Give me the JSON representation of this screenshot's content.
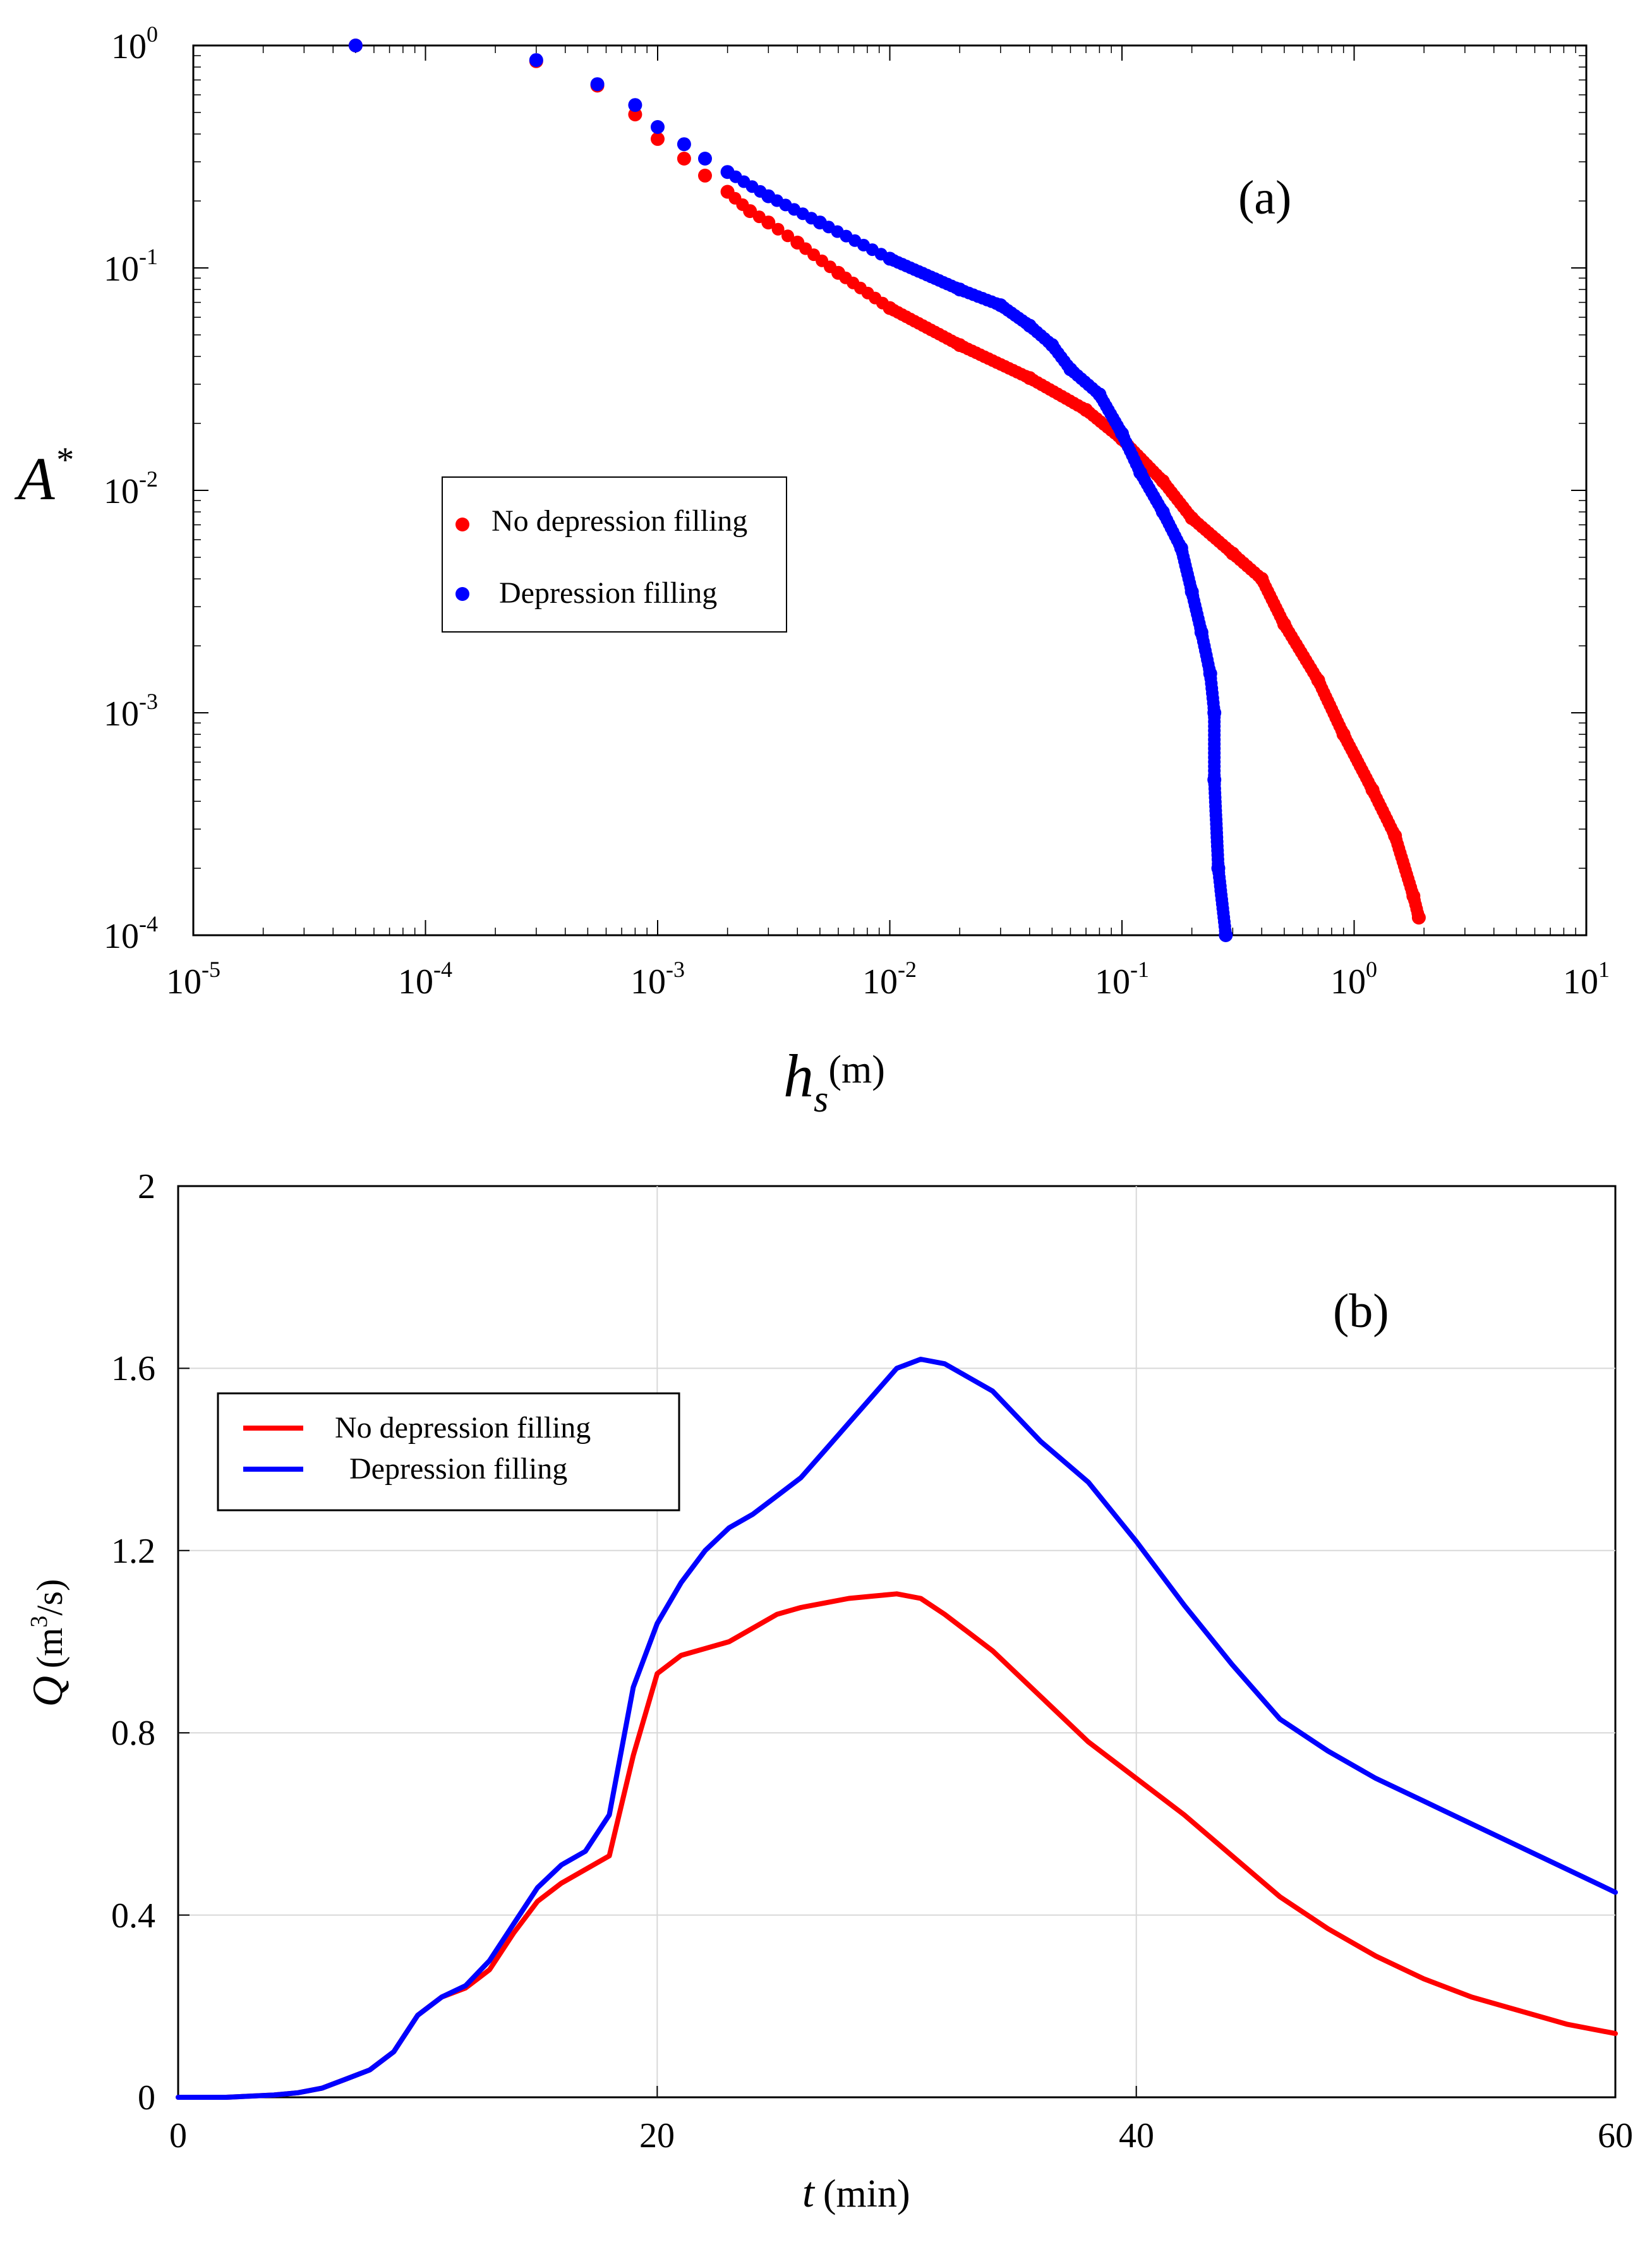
{
  "chart_data": [
    {
      "id": "a",
      "type": "scatter",
      "panel_label": "(a)",
      "xscale": "log",
      "yscale": "log",
      "xlim": [
        1e-05,
        10
      ],
      "ylim": [
        0.0001,
        1
      ],
      "x_ticks": [
        {
          "base": "10",
          "exp": "-5"
        },
        {
          "base": "10",
          "exp": "-4"
        },
        {
          "base": "10",
          "exp": "-3"
        },
        {
          "base": "10",
          "exp": "-2"
        },
        {
          "base": "10",
          "exp": "-1"
        },
        {
          "base": "10",
          "exp": "0"
        },
        {
          "base": "10",
          "exp": "1"
        }
      ],
      "y_ticks": [
        {
          "base": "10",
          "exp": "0"
        },
        {
          "base": "10",
          "exp": "-1"
        },
        {
          "base": "10",
          "exp": "-2"
        },
        {
          "base": "10",
          "exp": "-3"
        },
        {
          "base": "10",
          "exp": "-4"
        }
      ],
      "xlabel": {
        "symbol": "h",
        "subscript": "s",
        "unit": "(m)"
      },
      "ylabel": {
        "symbol": "A",
        "superscript": "*"
      },
      "legend_position": "center-left",
      "series": [
        {
          "name": "No depression filling",
          "color": "#ff0000",
          "points": [
            [
              5e-05,
              1.0
            ],
            [
              0.0003,
              0.85
            ],
            [
              0.00055,
              0.66
            ],
            [
              0.0008,
              0.49
            ],
            [
              0.001,
              0.38
            ],
            [
              0.0013,
              0.31
            ],
            [
              0.0016,
              0.26
            ],
            [
              0.002,
              0.22
            ],
            [
              0.0025,
              0.18
            ],
            [
              0.003,
              0.16
            ],
            [
              0.004,
              0.13
            ],
            [
              0.006,
              0.095
            ],
            [
              0.01,
              0.066
            ],
            [
              0.02,
              0.045
            ],
            [
              0.04,
              0.032
            ],
            [
              0.07,
              0.023
            ],
            [
              0.1,
              0.017
            ],
            [
              0.15,
              0.011
            ],
            [
              0.2,
              0.0075
            ],
            [
              0.3,
              0.0052
            ],
            [
              0.4,
              0.004
            ],
            [
              0.5,
              0.0025
            ],
            [
              0.7,
              0.0014
            ],
            [
              0.9,
              0.0008
            ],
            [
              1.2,
              0.00045
            ],
            [
              1.5,
              0.00028
            ],
            [
              1.8,
              0.00015
            ],
            [
              1.9,
              0.00012
            ]
          ]
        },
        {
          "name": "Depression filling",
          "color": "#0000ff",
          "points": [
            [
              5e-05,
              1.0
            ],
            [
              0.0003,
              0.86
            ],
            [
              0.00055,
              0.67
            ],
            [
              0.0008,
              0.54
            ],
            [
              0.001,
              0.43
            ],
            [
              0.0013,
              0.36
            ],
            [
              0.0016,
              0.31
            ],
            [
              0.002,
              0.27
            ],
            [
              0.003,
              0.21
            ],
            [
              0.005,
              0.16
            ],
            [
              0.01,
              0.11
            ],
            [
              0.02,
              0.08
            ],
            [
              0.03,
              0.068
            ],
            [
              0.04,
              0.055
            ],
            [
              0.05,
              0.045
            ],
            [
              0.06,
              0.035
            ],
            [
              0.08,
              0.027
            ],
            [
              0.1,
              0.018
            ],
            [
              0.12,
              0.012
            ],
            [
              0.15,
              0.008
            ],
            [
              0.18,
              0.0055
            ],
            [
              0.2,
              0.0035
            ],
            [
              0.22,
              0.0023
            ],
            [
              0.24,
              0.0015
            ],
            [
              0.25,
              0.001
            ],
            [
              0.25,
              0.0005
            ],
            [
              0.26,
              0.0002
            ],
            [
              0.28,
              0.0001
            ]
          ]
        }
      ]
    },
    {
      "id": "b",
      "type": "line",
      "panel_label": "(b)",
      "xlim": [
        0,
        60
      ],
      "ylim": [
        0,
        2
      ],
      "x_ticks": [
        "0",
        "20",
        "40",
        "60"
      ],
      "y_ticks": [
        "0",
        "0.4",
        "0.8",
        "1.2",
        "1.6",
        "2"
      ],
      "x_tick_values": [
        0,
        20,
        40,
        60
      ],
      "y_tick_values": [
        0,
        0.4,
        0.8,
        1.2,
        1.6,
        2
      ],
      "xlabel": {
        "symbol": "t",
        "unit": "(min)"
      },
      "ylabel": {
        "symbol": "Q",
        "unit_pre": "(m",
        "unit_sup": "3",
        "unit_post": "/s)"
      },
      "grid": true,
      "legend_position": "top-left",
      "series": [
        {
          "name": "No depression filling",
          "color": "#ff0000",
          "x": [
            0,
            2,
            4,
            5,
            6,
            7,
            8,
            9,
            10,
            11,
            12,
            13,
            14,
            15,
            16,
            17,
            18,
            19,
            20,
            21,
            22,
            23,
            24,
            25,
            26,
            27,
            28,
            29,
            30,
            31,
            32,
            33,
            34,
            36,
            38,
            40,
            42,
            44,
            46,
            48,
            50,
            52,
            54,
            56,
            58,
            60
          ],
          "values": [
            0,
            0,
            0.005,
            0.01,
            0.02,
            0.04,
            0.06,
            0.1,
            0.18,
            0.22,
            0.24,
            0.28,
            0.36,
            0.43,
            0.47,
            0.5,
            0.53,
            0.75,
            0.93,
            0.97,
            0.985,
            1.0,
            1.03,
            1.06,
            1.075,
            1.085,
            1.095,
            1.1,
            1.105,
            1.095,
            1.06,
            1.02,
            0.98,
            0.88,
            0.78,
            0.7,
            0.62,
            0.53,
            0.44,
            0.37,
            0.31,
            0.26,
            0.22,
            0.19,
            0.16,
            0.14
          ]
        },
        {
          "name": "Depression filling",
          "color": "#0000ff",
          "x": [
            0,
            2,
            4,
            5,
            6,
            7,
            8,
            9,
            10,
            11,
            12,
            13,
            14,
            15,
            16,
            17,
            18,
            19,
            20,
            21,
            22,
            23,
            24,
            25,
            26,
            27,
            28,
            29,
            30,
            31,
            32,
            33,
            34,
            36,
            38,
            40,
            42,
            44,
            46,
            48,
            50,
            52,
            54,
            56,
            58,
            60
          ],
          "values": [
            0,
            0,
            0.005,
            0.01,
            0.02,
            0.04,
            0.06,
            0.1,
            0.18,
            0.22,
            0.245,
            0.3,
            0.38,
            0.46,
            0.51,
            0.54,
            0.62,
            0.9,
            1.04,
            1.13,
            1.2,
            1.25,
            1.28,
            1.32,
            1.36,
            1.42,
            1.48,
            1.54,
            1.6,
            1.62,
            1.61,
            1.58,
            1.55,
            1.44,
            1.35,
            1.22,
            1.08,
            0.95,
            0.83,
            0.76,
            0.7,
            0.65,
            0.6,
            0.55,
            0.5,
            0.45
          ]
        }
      ]
    }
  ]
}
